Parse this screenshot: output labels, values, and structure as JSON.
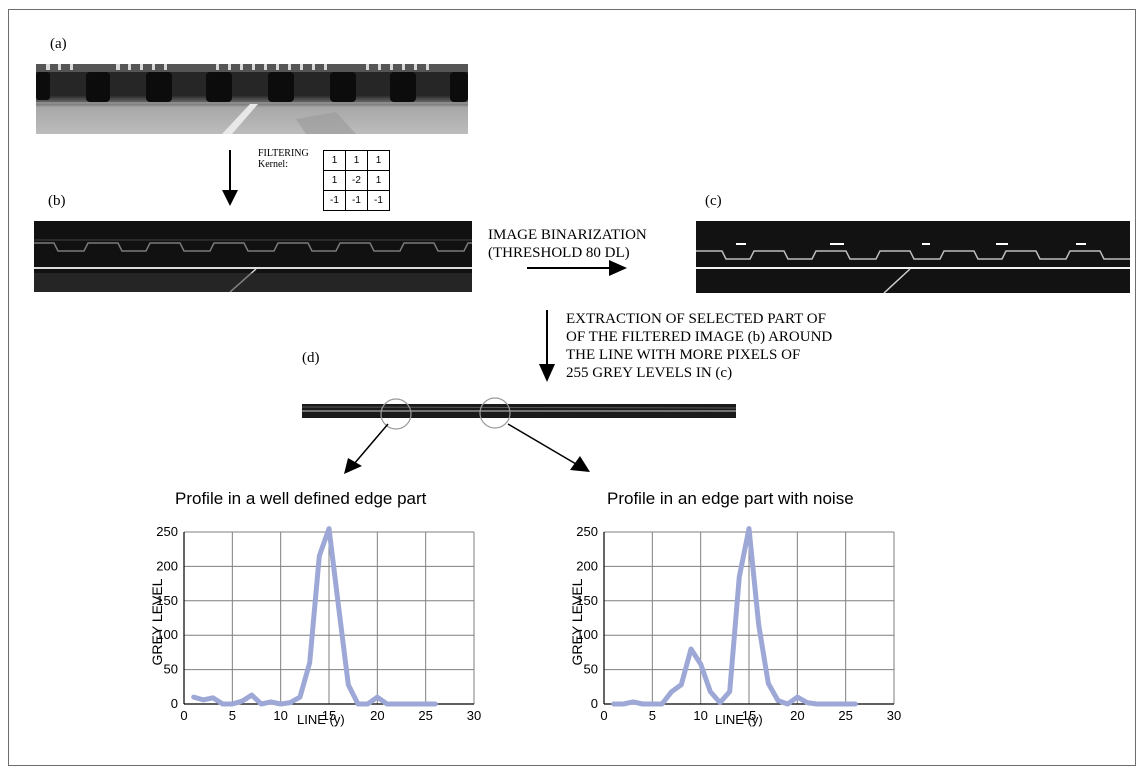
{
  "panels": {
    "a": "(a)",
    "b": "(b)",
    "c": "(c)",
    "d": "(d)"
  },
  "filtering": {
    "label_line1": "FILTERING",
    "label_line2": "Kernel:",
    "kernel": [
      [
        "1",
        "1",
        "1"
      ],
      [
        "1",
        "-2",
        "1"
      ],
      [
        "-1",
        "-1",
        "-1"
      ]
    ]
  },
  "binarization": {
    "line1": "IMAGE BINARIZATION",
    "line2": "(THRESHOLD  80 DL)"
  },
  "extraction": {
    "line1": "EXTRACTION OF SELECTED PART OF",
    "line2": "OF THE FILTERED IMAGE (b) AROUND",
    "line3": "THE LINE WITH MORE PIXELS OF",
    "line4": "255 GREY LEVELS IN (c)"
  },
  "colors": {
    "series": "#9ea8d6",
    "grid": "#7f7f7f",
    "arrow": "#000000"
  },
  "chart_data": [
    {
      "type": "line",
      "title": "Profile in a well defined edge part",
      "xlabel": "LINE (y)",
      "ylabel": "GREY LEVEL",
      "xlim": [
        0,
        30
      ],
      "ylim": [
        0,
        250
      ],
      "xticks": [
        "0",
        "5",
        "10",
        "15",
        "20",
        "25",
        "30"
      ],
      "yticks": [
        "0",
        "50",
        "100",
        "150",
        "200",
        "250"
      ],
      "grid": true,
      "series": [
        {
          "x": [
            1,
            2,
            3,
            4,
            5,
            6,
            7,
            8,
            9,
            10,
            11,
            12,
            13,
            14,
            15,
            16,
            17,
            18,
            19,
            20,
            21,
            22,
            23,
            24,
            25,
            26
          ],
          "y": [
            10,
            6,
            9,
            0,
            0,
            4,
            13,
            0,
            3,
            0,
            2,
            10,
            60,
            215,
            255,
            140,
            28,
            0,
            0,
            10,
            0,
            0,
            0,
            0,
            0,
            0
          ]
        }
      ]
    },
    {
      "type": "line",
      "title": "Profile in an edge part with noise",
      "xlabel": "LINE (y)",
      "ylabel": "GREY LEVEL",
      "xlim": [
        0,
        30
      ],
      "ylim": [
        0,
        250
      ],
      "xticks": [
        "0",
        "5",
        "10",
        "15",
        "20",
        "25",
        "30"
      ],
      "yticks": [
        "0",
        "50",
        "100",
        "150",
        "200",
        "250"
      ],
      "grid": true,
      "series": [
        {
          "x": [
            1,
            2,
            3,
            4,
            5,
            6,
            7,
            8,
            9,
            10,
            11,
            12,
            13,
            14,
            15,
            16,
            17,
            18,
            19,
            20,
            21,
            22,
            23,
            24,
            25,
            26
          ],
          "y": [
            0,
            0,
            3,
            0,
            0,
            0,
            18,
            28,
            80,
            58,
            18,
            2,
            18,
            185,
            255,
            115,
            30,
            5,
            0,
            10,
            2,
            0,
            0,
            0,
            0,
            0
          ]
        }
      ]
    }
  ]
}
